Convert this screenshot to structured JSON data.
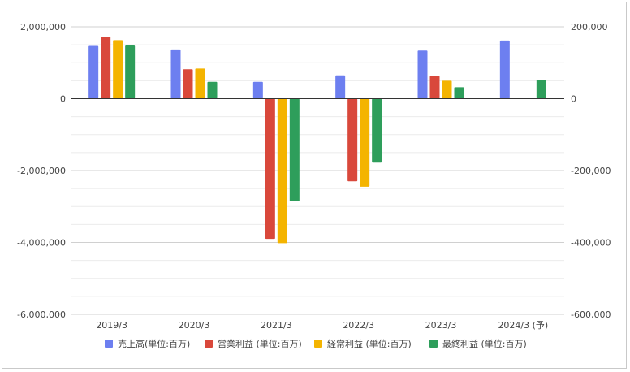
{
  "chart_data": {
    "type": "bar",
    "categories": [
      "2019/3",
      "2020/3",
      "2021/3",
      "2022/3",
      "2023/3",
      "2024/3 (予)"
    ],
    "series": [
      {
        "name": "売上高(単位:百万)",
        "axis": "left",
        "color": "#6d7ff0",
        "values": [
          1470000,
          1370000,
          470000,
          650000,
          1340000,
          1620000
        ]
      },
      {
        "name": "営業利益 (単位:百万)",
        "axis": "right",
        "color": "#d9483b",
        "values": [
          173000,
          82000,
          -390000,
          -230000,
          63000,
          null
        ]
      },
      {
        "name": "経常利益 (単位:百万)",
        "axis": "right",
        "color": "#f4b400",
        "values": [
          163000,
          84000,
          -402000,
          -245000,
          50000,
          null
        ]
      },
      {
        "name": "最終利益 (単位:百万)",
        "axis": "right",
        "color": "#2e9e5b",
        "values": [
          148000,
          47000,
          -285000,
          -178000,
          32000,
          53000
        ]
      }
    ],
    "ylim_left": [
      -6000000,
      2000000
    ],
    "ylim_right": [
      -600000,
      200000
    ],
    "left_ticks": [
      "2,000,000",
      "0",
      "-2,000,000",
      "-4,000,000",
      "-6,000,000"
    ],
    "right_ticks": [
      "200,000",
      "0",
      "-200,000",
      "-400,000",
      "-600,000"
    ],
    "grid": true,
    "legend_position": "bottom",
    "title": "",
    "xlabel": "",
    "ylabel": ""
  }
}
